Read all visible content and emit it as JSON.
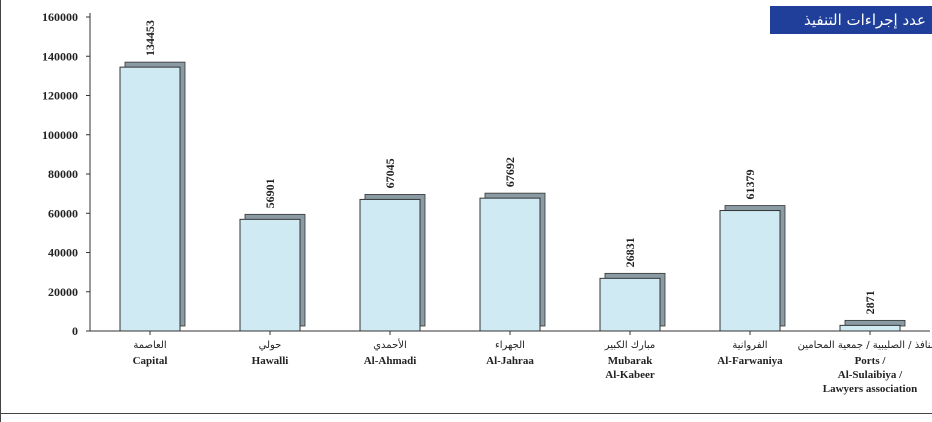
{
  "header": {
    "tag_text": "عدد إجراءات التنفيذ"
  },
  "chart_data": {
    "type": "bar",
    "categories": [
      {
        "ar": "العاصمة",
        "en": [
          "Capital"
        ]
      },
      {
        "ar": "حولي",
        "en": [
          "Hawalli"
        ]
      },
      {
        "ar": "الأحمدي",
        "en": [
          "Al-Ahmadi"
        ]
      },
      {
        "ar": "الجهراء",
        "en": [
          "Al-Jahraa"
        ]
      },
      {
        "ar": "مبارك الكبير",
        "en": [
          "Mubarak",
          "Al-Kabeer"
        ]
      },
      {
        "ar": "الفروانية",
        "en": [
          "Al-Farwaniya"
        ]
      },
      {
        "ar": "المنافذ / الصليبية / جمعية المحامين",
        "en": [
          "Ports /",
          "Al-Sulaibiya /",
          "Lawyers association"
        ]
      }
    ],
    "values": [
      134453,
      56901,
      67045,
      67692,
      26831,
      61379,
      2871
    ],
    "data_labels": [
      "134453",
      "56901",
      "67045",
      "67692",
      "26831",
      "61379",
      "2871"
    ],
    "ylim": [
      0,
      160000
    ],
    "yticks": [
      0,
      20000,
      40000,
      60000,
      80000,
      100000,
      120000,
      140000,
      160000
    ],
    "ytick_labels": [
      "0",
      "20000",
      "40000",
      "60000",
      "80000",
      "100000",
      "120000",
      "140000",
      "160000"
    ],
    "grid": false,
    "legend": "none",
    "colors": {
      "bar_fill": "#cfeaf3",
      "bar_shade": "#8a9ba3",
      "bar_stroke": "#333333",
      "header_bg": "#1f3f9a"
    }
  }
}
